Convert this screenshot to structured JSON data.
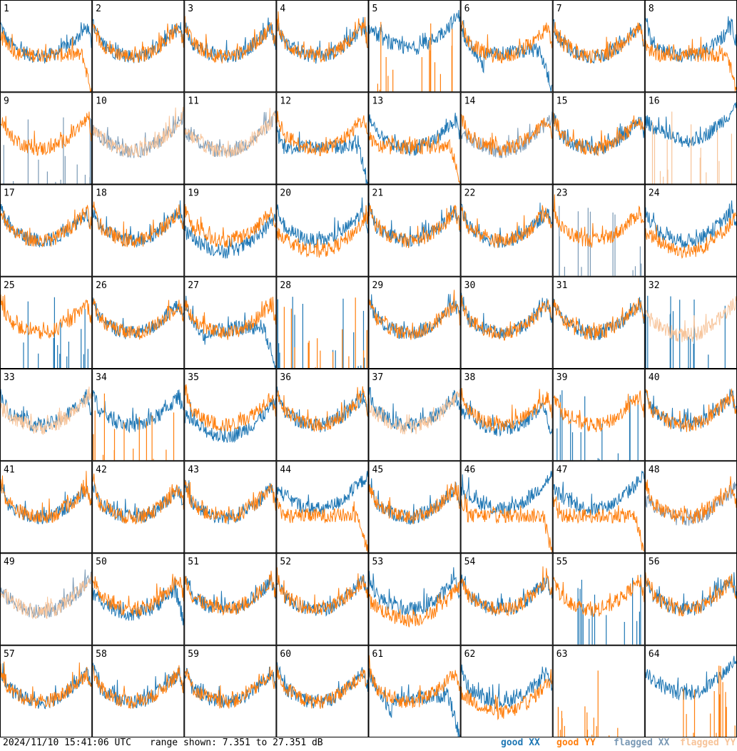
{
  "chart_data": {
    "type": "line",
    "panels": [
      "1",
      "2",
      "3",
      "4",
      "5",
      "6",
      "7",
      "8",
      "9",
      "10",
      "11",
      "12",
      "13",
      "14",
      "15",
      "16",
      "17",
      "18",
      "19",
      "20",
      "21",
      "22",
      "23",
      "24",
      "25",
      "26",
      "27",
      "28",
      "29",
      "30",
      "31",
      "32",
      "33",
      "34",
      "35",
      "36",
      "37",
      "38",
      "39",
      "40",
      "41",
      "42",
      "43",
      "44",
      "45",
      "46",
      "47",
      "48",
      "49",
      "50",
      "51",
      "52",
      "53",
      "54",
      "55",
      "56",
      "57",
      "58",
      "59",
      "60",
      "61",
      "62",
      "63",
      "64"
    ],
    "series_names": [
      "good XX",
      "good YY",
      "flagged XX",
      "flagged YY"
    ],
    "series_colors": {
      "good XX": "#1f77b4",
      "good YY": "#ff7f0e",
      "flagged XX": "#7a99b5",
      "flagged YY": "#f7c49a"
    },
    "y_range_db": [
      7.351,
      27.351
    ],
    "panel_profiles": {
      "1": [
        "dip",
        "dip-flat-drop"
      ],
      "2": [
        "dip",
        "dip"
      ],
      "3": [
        "dip",
        "dip"
      ],
      "4": [
        "dip",
        "dip"
      ],
      "5": [
        "dip-high",
        "spikes"
      ],
      "6": [
        "sag-drop",
        "dip"
      ],
      "7": [
        "dip",
        "dip"
      ],
      "8": [
        "dip",
        "flat-drop"
      ],
      "9": [
        "spikes-flagged",
        "dip"
      ],
      "10": [
        "dip-flagged",
        "dip-flagged"
      ],
      "11": [
        "dip-flagged",
        "dip-flagged"
      ],
      "12": [
        "flat-drop",
        "dip"
      ],
      "13": [
        "dip",
        "flat-drop"
      ],
      "14": [
        "dip-flagged",
        "dip"
      ],
      "15": [
        "dip",
        "dip"
      ],
      "16": [
        "dip-high",
        "spikes-flagged"
      ],
      "17": [
        "dip",
        "dip"
      ],
      "18": [
        "dip",
        "dip"
      ],
      "19": [
        "dip-deep",
        "dip"
      ],
      "20": [
        "dip",
        "dip-deep"
      ],
      "21": [
        "dip",
        "dip"
      ],
      "22": [
        "dip",
        "dip"
      ],
      "23": [
        "spikes-flagged",
        "dip"
      ],
      "24": [
        "dip",
        "dip-deep"
      ],
      "25": [
        "spikes",
        "dip"
      ],
      "26": [
        "dip",
        "dip"
      ],
      "27": [
        "sag-drop",
        "dip"
      ],
      "28": [
        "spikes",
        "spikes"
      ],
      "29": [
        "dip",
        "dip"
      ],
      "30": [
        "dip",
        "dip"
      ],
      "31": [
        "dip",
        "dip"
      ],
      "32": [
        "spikes",
        "dip-flagged"
      ],
      "33": [
        "dip",
        "dip-flagged"
      ],
      "34": [
        "dip",
        "spikes"
      ],
      "35": [
        "dip-deep",
        "dip"
      ],
      "36": [
        "dip",
        "dip"
      ],
      "37": [
        "dip",
        "dip-flagged"
      ],
      "38": [
        "dip-drop",
        "dip"
      ],
      "39": [
        "spikes",
        "dip"
      ],
      "40": [
        "dip",
        "dip"
      ],
      "41": [
        "dip",
        "dip"
      ],
      "42": [
        "dip",
        "dip"
      ],
      "43": [
        "dip",
        "dip"
      ],
      "44": [
        "dip-high",
        "flat-drop"
      ],
      "45": [
        "dip",
        "dip"
      ],
      "46": [
        "dip-high",
        "flat-drop"
      ],
      "47": [
        "dip-high",
        "flat-drop"
      ],
      "48": [
        "dip-flagged",
        "dip"
      ],
      "49": [
        "dip-flagged",
        "dip-flagged"
      ],
      "50": [
        "dip-drop",
        "dip"
      ],
      "51": [
        "dip",
        "dip"
      ],
      "52": [
        "dip",
        "dip"
      ],
      "53": [
        "dip",
        "dip-deep"
      ],
      "54": [
        "dip",
        "dip"
      ],
      "55": [
        "spikes",
        "dip"
      ],
      "56": [
        "dip",
        "dip"
      ],
      "57": [
        "dip",
        "dip"
      ],
      "58": [
        "dip",
        "dip"
      ],
      "59": [
        "dip",
        "dip"
      ],
      "60": [
        "dip",
        "dip"
      ],
      "61": [
        "sag-drop",
        "dip"
      ],
      "62": [
        "dip",
        "dip-deep"
      ],
      "63": [
        "none",
        "spikes"
      ],
      "64": [
        "dip-high",
        "spikes"
      ]
    }
  },
  "footer": {
    "timestamp": "2024/11/10 15:41:06 UTC",
    "range_text": "range shown: 7.351 to 27.351 dB"
  },
  "legend": [
    {
      "label": "good XX",
      "color": "#1f77b4"
    },
    {
      "label": "good YY",
      "color": "#ff7f0e"
    },
    {
      "label": "flagged XX",
      "color": "#7a99b5"
    },
    {
      "label": "flagged YY",
      "color": "#f7c49a"
    }
  ]
}
